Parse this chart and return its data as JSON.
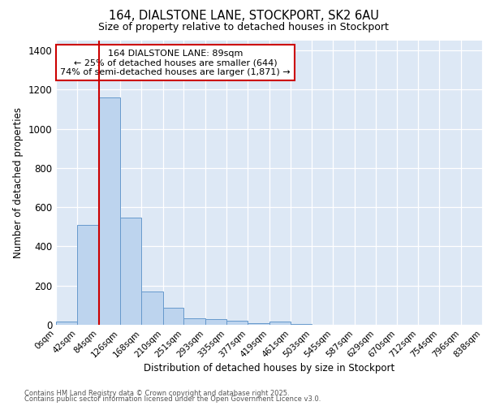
{
  "title1": "164, DIALSTONE LANE, STOCKPORT, SK2 6AU",
  "title2": "Size of property relative to detached houses in Stockport",
  "xlabel": "Distribution of detached houses by size in Stockport",
  "ylabel": "Number of detached properties",
  "bin_edges": [
    0,
    42,
    84,
    126,
    168,
    210,
    251,
    293,
    335,
    377,
    419,
    461,
    503,
    545,
    587,
    629,
    670,
    712,
    754,
    796,
    838
  ],
  "bin_labels": [
    "0sqm",
    "42sqm",
    "84sqm",
    "126sqm",
    "168sqm",
    "210sqm",
    "251sqm",
    "293sqm",
    "335sqm",
    "377sqm",
    "419sqm",
    "461sqm",
    "503sqm",
    "545sqm",
    "587sqm",
    "629sqm",
    "670sqm",
    "712sqm",
    "754sqm",
    "796sqm",
    "838sqm"
  ],
  "bar_heights": [
    15,
    510,
    1160,
    545,
    170,
    88,
    35,
    28,
    20,
    8,
    15,
    5,
    0,
    0,
    0,
    0,
    0,
    0,
    0,
    0
  ],
  "bar_color": "#bdd4ee",
  "bar_edge_color": "#6699cc",
  "red_line_x": 84,
  "ylim": [
    0,
    1450
  ],
  "yticks": [
    0,
    200,
    400,
    600,
    800,
    1000,
    1200,
    1400
  ],
  "annotation_title": "164 DIALSTONE LANE: 89sqm",
  "annotation_line1": "← 25% of detached houses are smaller (644)",
  "annotation_line2": "74% of semi-detached houses are larger (1,871) →",
  "annotation_box_color": "#ffffff",
  "annotation_border_color": "#cc0000",
  "background_color": "#dde8f5",
  "grid_color": "#ffffff",
  "footer1": "Contains HM Land Registry data © Crown copyright and database right 2025.",
  "footer2": "Contains public sector information licensed under the Open Government Licence v3.0."
}
